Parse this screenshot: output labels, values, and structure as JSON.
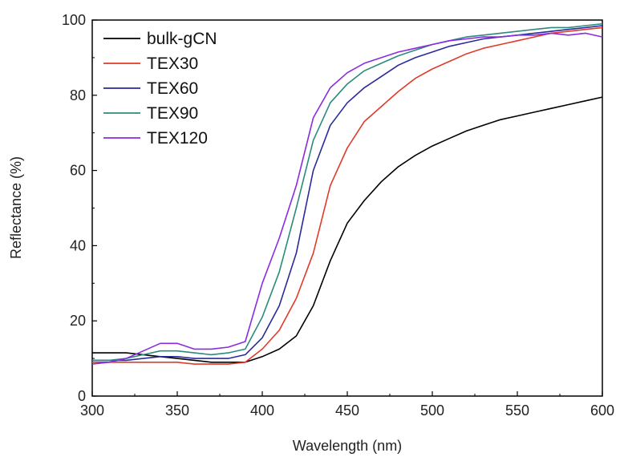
{
  "chart_data": {
    "type": "line",
    "title": "",
    "xlabel": "Wavelength (nm)",
    "ylabel": "Reflectance (%)",
    "xlim": [
      300,
      600
    ],
    "ylim": [
      0,
      100
    ],
    "xticks": [
      300,
      350,
      400,
      450,
      500,
      550,
      600
    ],
    "yticks": [
      0,
      20,
      40,
      60,
      80,
      100
    ],
    "grid": false,
    "legend_position": "top-left",
    "series": [
      {
        "name": "bulk-gCN",
        "color": "#000000",
        "x": [
          300,
          310,
          320,
          330,
          340,
          350,
          360,
          370,
          380,
          390,
          400,
          410,
          420,
          430,
          440,
          450,
          460,
          470,
          480,
          490,
          500,
          510,
          520,
          530,
          540,
          550,
          560,
          570,
          580,
          590,
          600
        ],
        "y": [
          11.5,
          11.5,
          11.5,
          11,
          10.5,
          10,
          9.5,
          9,
          9,
          9,
          10.5,
          12.5,
          16,
          24,
          36,
          46,
          52,
          57,
          61,
          64,
          66.5,
          68.5,
          70.5,
          72,
          73.5,
          74.5,
          75.5,
          76.5,
          77.5,
          78.5,
          79.5
        ]
      },
      {
        "name": "TEX30",
        "color": "#e03a2a",
        "x": [
          300,
          310,
          320,
          330,
          340,
          350,
          360,
          370,
          380,
          390,
          400,
          410,
          420,
          430,
          440,
          450,
          460,
          470,
          480,
          490,
          500,
          510,
          520,
          530,
          540,
          550,
          560,
          570,
          580,
          590,
          600
        ],
        "y": [
          9,
          9,
          9,
          9,
          9,
          9,
          8.5,
          8.5,
          8.5,
          9,
          12.5,
          17.5,
          26,
          38,
          56,
          66,
          73,
          77,
          81,
          84.5,
          87,
          89,
          91,
          92.5,
          93.5,
          94.5,
          95.5,
          96.5,
          97,
          97.5,
          98
        ]
      },
      {
        "name": "TEX60",
        "color": "#2a2a9a",
        "x": [
          300,
          310,
          320,
          330,
          340,
          350,
          360,
          370,
          380,
          390,
          400,
          410,
          420,
          430,
          440,
          450,
          460,
          470,
          480,
          490,
          500,
          510,
          520,
          530,
          540,
          550,
          560,
          570,
          580,
          590,
          600
        ],
        "y": [
          9.5,
          9.5,
          9.5,
          10,
          10.5,
          10.5,
          10,
          10,
          10,
          11,
          15.5,
          24,
          38,
          60,
          72,
          78,
          82,
          85,
          88,
          90,
          91.5,
          93,
          94,
          95,
          95.5,
          96,
          96.5,
          97,
          97.5,
          98,
          98.5
        ]
      },
      {
        "name": "TEX90",
        "color": "#2b8b7a",
        "x": [
          300,
          310,
          320,
          330,
          340,
          350,
          360,
          370,
          380,
          390,
          400,
          410,
          420,
          430,
          440,
          450,
          460,
          470,
          480,
          490,
          500,
          510,
          520,
          530,
          540,
          550,
          560,
          570,
          580,
          590,
          600
        ],
        "y": [
          9.5,
          9.5,
          10,
          11,
          12,
          12,
          11.5,
          11,
          11.5,
          12.5,
          21,
          33,
          50,
          68,
          78,
          83,
          86.5,
          88.5,
          90.5,
          92,
          93.5,
          94.5,
          95.5,
          96,
          96.5,
          97,
          97.5,
          98,
          98,
          98.5,
          99
        ]
      },
      {
        "name": "TEX120",
        "color": "#8a2be2",
        "x": [
          300,
          310,
          320,
          330,
          340,
          350,
          360,
          370,
          380,
          390,
          400,
          410,
          420,
          430,
          440,
          450,
          460,
          470,
          480,
          490,
          500,
          510,
          520,
          530,
          540,
          550,
          560,
          570,
          580,
          590,
          600
        ],
        "y": [
          8.5,
          9,
          10,
          12,
          14,
          14,
          12.5,
          12.5,
          13,
          14.5,
          30,
          42,
          56,
          74,
          82,
          86,
          88.5,
          90,
          91.5,
          92.5,
          93.5,
          94.5,
          95,
          95.5,
          95.5,
          96,
          96,
          96.5,
          96,
          96.5,
          95.5
        ]
      }
    ]
  }
}
